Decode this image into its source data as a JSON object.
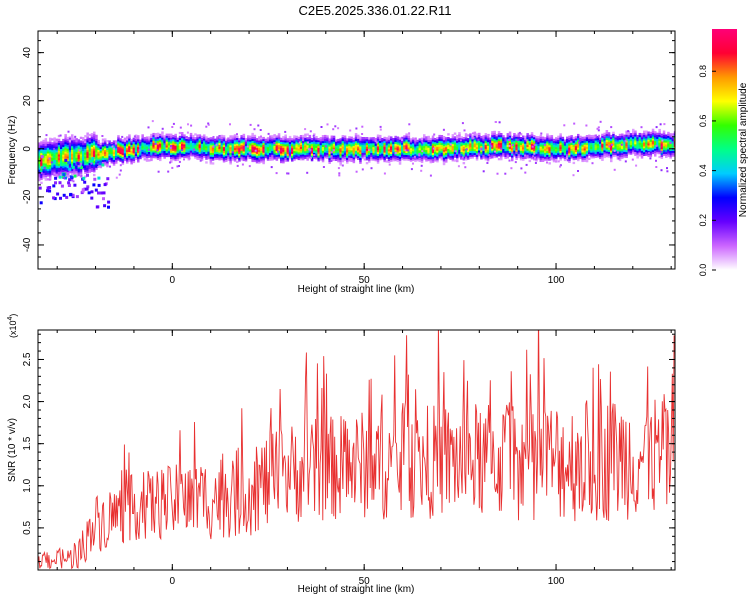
{
  "title": "C2E5.2025.336.01.22.R11",
  "chart_data": [
    {
      "type": "heatmap",
      "xlabel": "Height of straight line (km)",
      "ylabel": "Frequency (Hz)",
      "xlim": [
        -35,
        131
      ],
      "ylim": [
        -50,
        49
      ],
      "xticks": [
        0,
        50,
        100
      ],
      "yticks": [
        -40,
        -20,
        0,
        20,
        40
      ],
      "grid": false,
      "colorbar": {
        "label": "Normalized spectral amplitude",
        "range": [
          0,
          0.97
        ],
        "ticks": [
          0.0,
          0.2,
          0.4,
          0.6,
          0.8
        ],
        "colormap": [
          "#ffffff",
          "#cc66ff",
          "#6600ff",
          "#0000ff",
          "#00ccff",
          "#00ff88",
          "#33ff00",
          "#ffff00",
          "#ff9900",
          "#ff0033",
          "#ff0077"
        ]
      },
      "ridge": {
        "x": [
          -35,
          -30,
          -25,
          -20,
          -15,
          -10,
          -5,
          0,
          5,
          10,
          20,
          30,
          40,
          50,
          60,
          70,
          80,
          90,
          100,
          110,
          120,
          131
        ],
        "y": [
          -5,
          -4,
          -3,
          -2,
          -1,
          0,
          1,
          1,
          1,
          0,
          0,
          0,
          0,
          0,
          0,
          0,
          1,
          1,
          0,
          1,
          2,
          2
        ]
      }
    },
    {
      "type": "line",
      "xlabel": "Height of straight line (km)",
      "ylabel": "SNR (10 * v/v)",
      "yscale_label": "(x10",
      "yscale_exp": "4",
      "xlim": [
        -35,
        131
      ],
      "ylim": [
        0,
        2.85
      ],
      "xticks": [
        0,
        50,
        100
      ],
      "yticks": [
        0.5,
        1.0,
        1.5,
        2.0,
        2.5
      ],
      "ytick_labels": [
        "0.5",
        "1.0",
        "1.5",
        "2.0",
        "2.5"
      ],
      "series": [
        {
          "color": "#e83030",
          "trend": {
            "x": [
              -35,
              -25,
              -20,
              -10,
              0,
              10,
              20,
              30,
              40,
              50,
              60,
              70,
              80,
              90,
              100,
              110,
              120,
              131
            ],
            "y": [
              0.1,
              0.15,
              0.55,
              0.75,
              0.8,
              0.85,
              0.95,
              1.15,
              1.2,
              1.25,
              1.25,
              1.3,
              1.3,
              1.3,
              1.3,
              1.3,
              1.35,
              1.35
            ]
          },
          "spread": {
            "x": [
              -35,
              -25,
              -20,
              -10,
              0,
              10,
              20,
              30,
              50,
              80,
              110,
              131
            ],
            "y": [
              0.1,
              0.15,
              0.35,
              0.4,
              0.45,
              0.5,
              0.55,
              0.6,
              0.65,
              0.7,
              0.75,
              0.75
            ]
          }
        }
      ]
    }
  ]
}
